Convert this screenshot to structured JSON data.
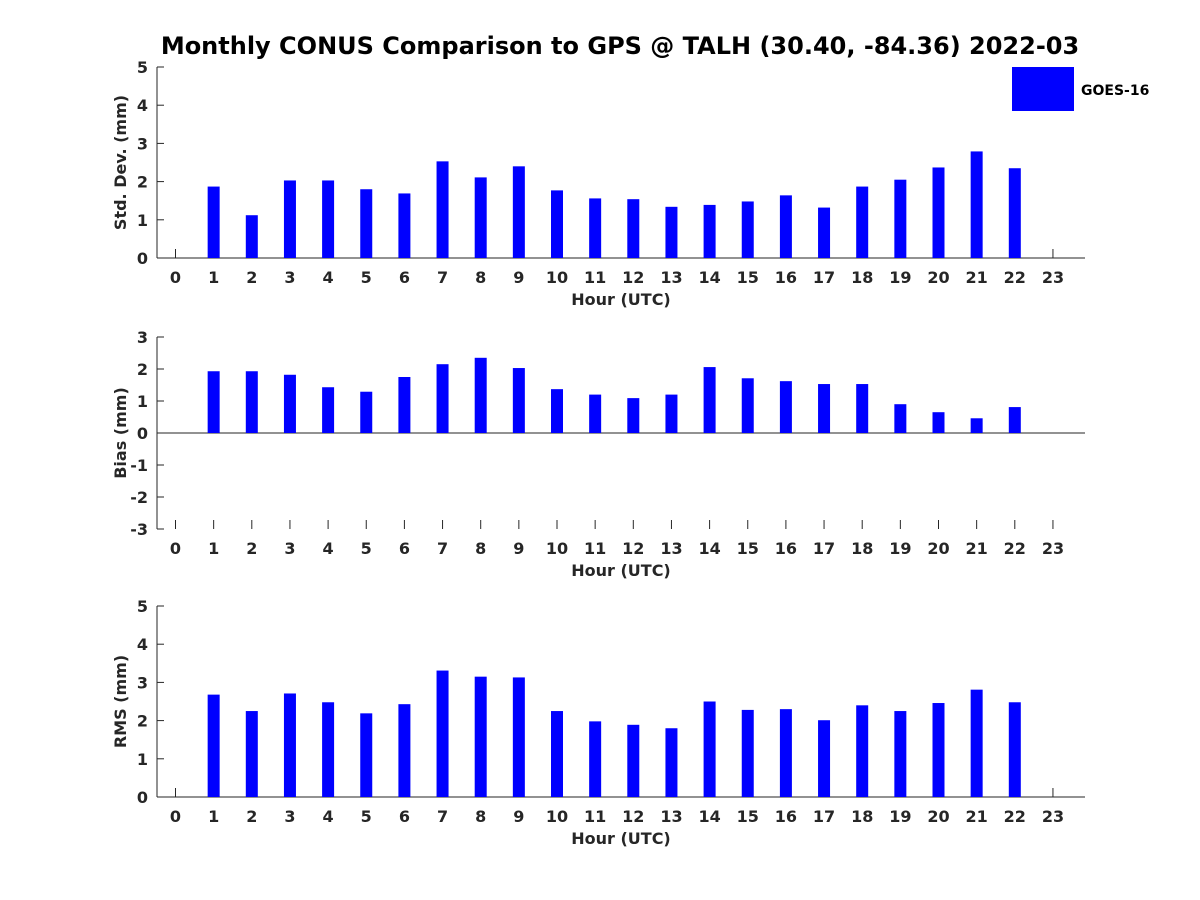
{
  "title": "Monthly CONUS Comparison to GPS @ TALH (30.40, -84.36) 2022-03",
  "legend": {
    "label": "GOES-16",
    "color": "#0000ff"
  },
  "bar_color": "#0000ff",
  "chart_data": [
    {
      "type": "bar",
      "ylabel": "Std. Dev. (mm)",
      "xlabel": "Hour (UTC)",
      "ylim": [
        0,
        5
      ],
      "yticks": [
        "0",
        "1",
        "2",
        "3",
        "4",
        "5"
      ],
      "xticks": [
        "0",
        "1",
        "2",
        "3",
        "4",
        "5",
        "6",
        "7",
        "8",
        "9",
        "10",
        "11",
        "12",
        "13",
        "14",
        "15",
        "16",
        "17",
        "18",
        "19",
        "20",
        "21",
        "22",
        "23"
      ],
      "categories": [
        0,
        1,
        2,
        3,
        4,
        5,
        6,
        7,
        8,
        9,
        10,
        11,
        12,
        13,
        14,
        15,
        16,
        17,
        18,
        19,
        20,
        21,
        22,
        23
      ],
      "values": [
        null,
        1.87,
        1.12,
        2.03,
        2.03,
        1.8,
        1.69,
        2.53,
        2.11,
        2.4,
        1.77,
        1.56,
        1.54,
        1.34,
        1.39,
        1.48,
        1.64,
        1.32,
        1.87,
        2.05,
        2.37,
        2.79,
        2.35,
        null
      ]
    },
    {
      "type": "bar",
      "ylabel": "Bias (mm)",
      "xlabel": "Hour (UTC)",
      "ylim": [
        -3,
        3
      ],
      "yticks": [
        "-3",
        "-2",
        "-1",
        "0",
        "1",
        "2",
        "3"
      ],
      "xticks": [
        "0",
        "1",
        "2",
        "3",
        "4",
        "5",
        "6",
        "7",
        "8",
        "9",
        "10",
        "11",
        "12",
        "13",
        "14",
        "15",
        "16",
        "17",
        "18",
        "19",
        "20",
        "21",
        "22",
        "23"
      ],
      "categories": [
        0,
        1,
        2,
        3,
        4,
        5,
        6,
        7,
        8,
        9,
        10,
        11,
        12,
        13,
        14,
        15,
        16,
        17,
        18,
        19,
        20,
        21,
        22,
        23
      ],
      "values": [
        null,
        1.93,
        1.93,
        1.82,
        1.43,
        1.29,
        1.75,
        2.15,
        2.35,
        2.03,
        1.37,
        1.2,
        1.09,
        1.2,
        2.06,
        1.71,
        1.62,
        1.53,
        1.53,
        0.9,
        0.65,
        0.46,
        0.81,
        null
      ]
    },
    {
      "type": "bar",
      "ylabel": "RMS (mm)",
      "xlabel": "Hour (UTC)",
      "ylim": [
        0,
        5
      ],
      "yticks": [
        "0",
        "1",
        "2",
        "3",
        "4",
        "5"
      ],
      "xticks": [
        "0",
        "1",
        "2",
        "3",
        "4",
        "5",
        "6",
        "7",
        "8",
        "9",
        "10",
        "11",
        "12",
        "13",
        "14",
        "15",
        "16",
        "17",
        "18",
        "19",
        "20",
        "21",
        "22",
        "23"
      ],
      "categories": [
        0,
        1,
        2,
        3,
        4,
        5,
        6,
        7,
        8,
        9,
        10,
        11,
        12,
        13,
        14,
        15,
        16,
        17,
        18,
        19,
        20,
        21,
        22,
        23
      ],
      "values": [
        null,
        2.68,
        2.25,
        2.71,
        2.48,
        2.19,
        2.43,
        3.31,
        3.15,
        3.13,
        2.25,
        1.98,
        1.89,
        1.8,
        2.5,
        2.28,
        2.3,
        2.01,
        2.4,
        2.25,
        2.46,
        2.81,
        2.48,
        null
      ]
    }
  ]
}
